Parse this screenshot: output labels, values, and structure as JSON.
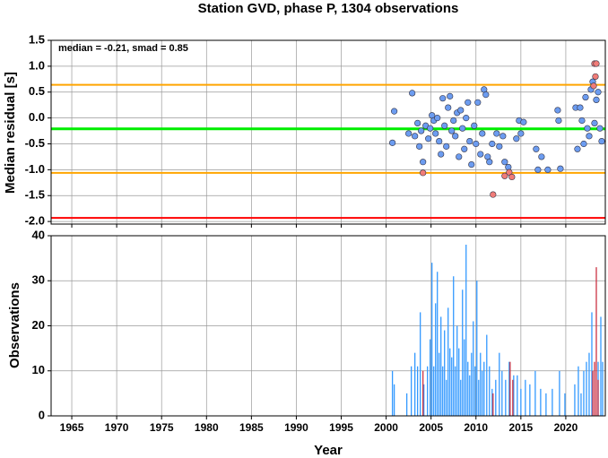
{
  "chart_data": [
    {
      "type": "scatter",
      "title": "Station GVD, phase P, 1304 observations",
      "y_label": "Median residual [s]",
      "annotation": "median = -0.21, smad = 0.85",
      "xlim": [
        1962.7,
        2024.4
      ],
      "xticks": [
        1965,
        1970,
        1975,
        1980,
        1985,
        1990,
        1995,
        2000,
        2005,
        2010,
        2015,
        2020
      ],
      "ylim": [
        -2.05,
        1.5
      ],
      "yticks": [
        1.5,
        {
          "value": 1,
          "label": "1.0"
        },
        0.5,
        {
          "value": 0,
          "label": "0.0"
        },
        -0.5,
        {
          "value": -1,
          "label": "-1.0"
        },
        -1.5,
        {
          "value": -2,
          "label": "-2.0"
        }
      ],
      "grid": true,
      "reference_lines": [
        {
          "value": 0.64,
          "color": "#ffa500"
        },
        {
          "value": -0.21,
          "color": "#00ee00"
        },
        {
          "value": -1.06,
          "color": "#ffa500"
        },
        {
          "value": -1.93,
          "color": "#ff0000"
        }
      ],
      "series": [
        {
          "color": "#6c9cf0",
          "x": [
            2000.7,
            2000.9,
            2002.5,
            2002.9,
            2003.2,
            2003.5,
            2003.7,
            2003.9,
            2004.1,
            2004.4,
            2004.7,
            2004.9,
            2005.1,
            2005.3,
            2005.5,
            2005.7,
            2005.9,
            2006.1,
            2006.3,
            2006.5,
            2006.7,
            2006.9,
            2007.1,
            2007.3,
            2007.5,
            2007.7,
            2007.9,
            2008.1,
            2008.3,
            2008.5,
            2008.7,
            2008.9,
            2009.1,
            2009.3,
            2009.5,
            2009.8,
            2010.0,
            2010.2,
            2010.5,
            2010.7,
            2010.9,
            2011.1,
            2011.3,
            2011.5,
            2011.8,
            2012.3,
            2012.6,
            2013.0,
            2013.2,
            2013.6,
            2014.5,
            2014.8,
            2015.0,
            2015.3,
            2016.7,
            2016.9,
            2017.3,
            2018.0,
            2019.1,
            2019.2,
            2019.4,
            2021.1,
            2021.3,
            2021.6,
            2021.8,
            2022.0,
            2022.2,
            2022.4,
            2022.6,
            2022.8,
            2023.0,
            2023.2,
            2023.4,
            2023.6,
            2023.8,
            2024.0
          ],
          "values": [
            -0.48,
            0.13,
            -0.3,
            0.48,
            -0.35,
            -0.1,
            -0.55,
            -0.25,
            -0.85,
            -0.15,
            -0.4,
            -0.2,
            0.05,
            -0.05,
            -0.3,
            0.0,
            -0.45,
            -0.7,
            0.38,
            -0.15,
            -0.55,
            0.2,
            0.42,
            -0.25,
            -0.05,
            -0.35,
            0.1,
            -0.75,
            0.15,
            -0.2,
            -0.6,
            0.0,
            0.3,
            -0.45,
            -0.9,
            -0.15,
            -0.5,
            0.3,
            -0.7,
            -0.3,
            0.55,
            0.45,
            -0.75,
            -0.85,
            -0.5,
            -0.3,
            -0.55,
            -0.35,
            -0.85,
            -0.95,
            -0.4,
            -0.05,
            -0.3,
            -0.08,
            -0.6,
            -1.0,
            -0.75,
            -1.0,
            0.15,
            -0.05,
            -0.98,
            0.2,
            -0.6,
            0.2,
            -0.05,
            -0.5,
            0.4,
            -0.2,
            -0.35,
            0.55,
            0.7,
            -0.1,
            0.35,
            0.5,
            -0.2,
            -0.45
          ]
        },
        {
          "color": "#f07c78",
          "x": [
            2004.1,
            2011.9,
            2013.2,
            2013.7,
            2014.0,
            2023.1,
            2023.2,
            2023.3,
            2023.4
          ],
          "values": [
            -1.06,
            -1.48,
            -1.12,
            -1.05,
            -1.14,
            0.62,
            1.05,
            0.8,
            1.05
          ]
        }
      ]
    },
    {
      "type": "bar",
      "x_label": "Year",
      "y_label": "Observations",
      "xlim": [
        1962.7,
        2024.4
      ],
      "xticks": [
        1965,
        1970,
        1975,
        1980,
        1985,
        1990,
        1995,
        2000,
        2005,
        2010,
        2015,
        2020
      ],
      "ylim": [
        0,
        40
      ],
      "yticks": [
        0,
        10,
        20,
        30,
        40
      ],
      "grid": true,
      "series": [
        {
          "color": "#3399ff",
          "x": [
            2000.7,
            2000.9,
            2002.3,
            2002.8,
            2003.2,
            2003.5,
            2003.8,
            2004.2,
            2004.6,
            2004.9,
            2005.1,
            2005.3,
            2005.5,
            2005.7,
            2005.9,
            2006.1,
            2006.3,
            2006.5,
            2006.7,
            2006.9,
            2007.1,
            2007.3,
            2007.5,
            2007.7,
            2007.9,
            2008.1,
            2008.3,
            2008.5,
            2008.7,
            2008.9,
            2009.1,
            2009.3,
            2009.5,
            2009.7,
            2009.9,
            2010.1,
            2010.3,
            2010.5,
            2010.7,
            2010.9,
            2011.2,
            2011.5,
            2011.8,
            2012.2,
            2012.6,
            2012.9,
            2013.3,
            2013.7,
            2014.2,
            2014.6,
            2015.0,
            2015.5,
            2016.0,
            2016.6,
            2017.2,
            2017.8,
            2018.5,
            2019.3,
            2019.9,
            2021.0,
            2021.4,
            2021.7,
            2022.0,
            2022.3,
            2022.6,
            2022.9,
            2023.6,
            2023.9,
            2024.1
          ],
          "values": [
            10,
            7,
            5,
            11,
            14,
            11,
            23,
            7,
            11,
            17,
            34,
            11,
            25,
            32,
            14,
            22,
            11,
            19,
            8,
            24,
            15,
            13,
            31,
            11,
            20,
            15,
            8,
            28,
            17,
            38,
            12,
            9,
            14,
            21,
            11,
            30,
            8,
            14,
            10,
            12,
            18,
            11,
            6,
            8,
            14,
            10,
            8,
            12,
            9,
            9,
            6,
            8,
            7,
            10,
            6,
            5,
            6,
            10,
            5,
            7,
            11,
            5,
            10,
            12,
            14,
            23,
            12,
            22,
            12
          ]
        },
        {
          "color": "#cc3344",
          "x": [
            2004.1,
            2011.9,
            2013.8,
            2014.1,
            2023.0,
            2023.2,
            2023.4,
            2023.6
          ],
          "values": [
            10,
            5,
            12,
            8,
            10,
            12,
            33,
            8
          ]
        }
      ]
    }
  ]
}
